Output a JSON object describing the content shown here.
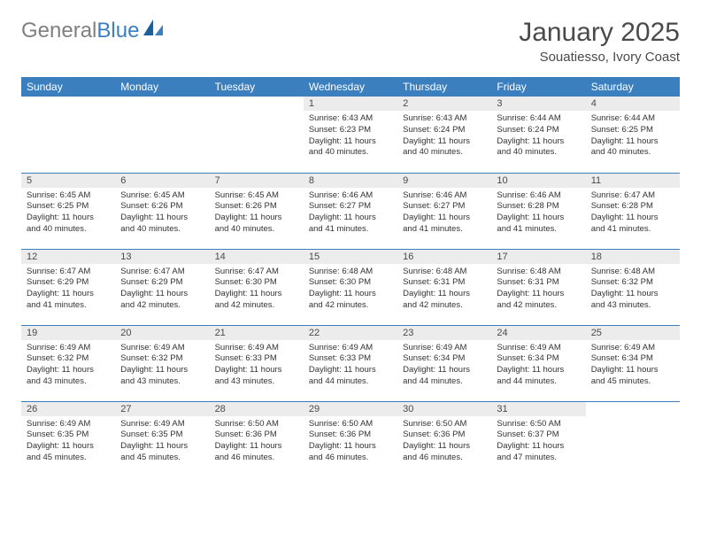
{
  "logo": {
    "text_gray": "General",
    "text_blue": "Blue"
  },
  "title": "January 2025",
  "location": "Souatiesso, Ivory Coast",
  "colors": {
    "header_bg": "#3b7fbf",
    "header_text": "#ffffff",
    "daynum_bg": "#ececec",
    "row_border": "#3b7fbf",
    "text": "#333333",
    "logo_gray": "#808080",
    "logo_blue": "#3b7fbf"
  },
  "weekdays": [
    "Sunday",
    "Monday",
    "Tuesday",
    "Wednesday",
    "Thursday",
    "Friday",
    "Saturday"
  ],
  "weeks": [
    [
      null,
      null,
      null,
      {
        "n": "1",
        "sr": "6:43 AM",
        "ss": "6:23 PM",
        "dl": "11 hours and 40 minutes."
      },
      {
        "n": "2",
        "sr": "6:43 AM",
        "ss": "6:24 PM",
        "dl": "11 hours and 40 minutes."
      },
      {
        "n": "3",
        "sr": "6:44 AM",
        "ss": "6:24 PM",
        "dl": "11 hours and 40 minutes."
      },
      {
        "n": "4",
        "sr": "6:44 AM",
        "ss": "6:25 PM",
        "dl": "11 hours and 40 minutes."
      }
    ],
    [
      {
        "n": "5",
        "sr": "6:45 AM",
        "ss": "6:25 PM",
        "dl": "11 hours and 40 minutes."
      },
      {
        "n": "6",
        "sr": "6:45 AM",
        "ss": "6:26 PM",
        "dl": "11 hours and 40 minutes."
      },
      {
        "n": "7",
        "sr": "6:45 AM",
        "ss": "6:26 PM",
        "dl": "11 hours and 40 minutes."
      },
      {
        "n": "8",
        "sr": "6:46 AM",
        "ss": "6:27 PM",
        "dl": "11 hours and 41 minutes."
      },
      {
        "n": "9",
        "sr": "6:46 AM",
        "ss": "6:27 PM",
        "dl": "11 hours and 41 minutes."
      },
      {
        "n": "10",
        "sr": "6:46 AM",
        "ss": "6:28 PM",
        "dl": "11 hours and 41 minutes."
      },
      {
        "n": "11",
        "sr": "6:47 AM",
        "ss": "6:28 PM",
        "dl": "11 hours and 41 minutes."
      }
    ],
    [
      {
        "n": "12",
        "sr": "6:47 AM",
        "ss": "6:29 PM",
        "dl": "11 hours and 41 minutes."
      },
      {
        "n": "13",
        "sr": "6:47 AM",
        "ss": "6:29 PM",
        "dl": "11 hours and 42 minutes."
      },
      {
        "n": "14",
        "sr": "6:47 AM",
        "ss": "6:30 PM",
        "dl": "11 hours and 42 minutes."
      },
      {
        "n": "15",
        "sr": "6:48 AM",
        "ss": "6:30 PM",
        "dl": "11 hours and 42 minutes."
      },
      {
        "n": "16",
        "sr": "6:48 AM",
        "ss": "6:31 PM",
        "dl": "11 hours and 42 minutes."
      },
      {
        "n": "17",
        "sr": "6:48 AM",
        "ss": "6:31 PM",
        "dl": "11 hours and 42 minutes."
      },
      {
        "n": "18",
        "sr": "6:48 AM",
        "ss": "6:32 PM",
        "dl": "11 hours and 43 minutes."
      }
    ],
    [
      {
        "n": "19",
        "sr": "6:49 AM",
        "ss": "6:32 PM",
        "dl": "11 hours and 43 minutes."
      },
      {
        "n": "20",
        "sr": "6:49 AM",
        "ss": "6:32 PM",
        "dl": "11 hours and 43 minutes."
      },
      {
        "n": "21",
        "sr": "6:49 AM",
        "ss": "6:33 PM",
        "dl": "11 hours and 43 minutes."
      },
      {
        "n": "22",
        "sr": "6:49 AM",
        "ss": "6:33 PM",
        "dl": "11 hours and 44 minutes."
      },
      {
        "n": "23",
        "sr": "6:49 AM",
        "ss": "6:34 PM",
        "dl": "11 hours and 44 minutes."
      },
      {
        "n": "24",
        "sr": "6:49 AM",
        "ss": "6:34 PM",
        "dl": "11 hours and 44 minutes."
      },
      {
        "n": "25",
        "sr": "6:49 AM",
        "ss": "6:34 PM",
        "dl": "11 hours and 45 minutes."
      }
    ],
    [
      {
        "n": "26",
        "sr": "6:49 AM",
        "ss": "6:35 PM",
        "dl": "11 hours and 45 minutes."
      },
      {
        "n": "27",
        "sr": "6:49 AM",
        "ss": "6:35 PM",
        "dl": "11 hours and 45 minutes."
      },
      {
        "n": "28",
        "sr": "6:50 AM",
        "ss": "6:36 PM",
        "dl": "11 hours and 46 minutes."
      },
      {
        "n": "29",
        "sr": "6:50 AM",
        "ss": "6:36 PM",
        "dl": "11 hours and 46 minutes."
      },
      {
        "n": "30",
        "sr": "6:50 AM",
        "ss": "6:36 PM",
        "dl": "11 hours and 46 minutes."
      },
      {
        "n": "31",
        "sr": "6:50 AM",
        "ss": "6:37 PM",
        "dl": "11 hours and 47 minutes."
      },
      null
    ]
  ],
  "labels": {
    "sunrise": "Sunrise:",
    "sunset": "Sunset:",
    "daylight": "Daylight:"
  }
}
